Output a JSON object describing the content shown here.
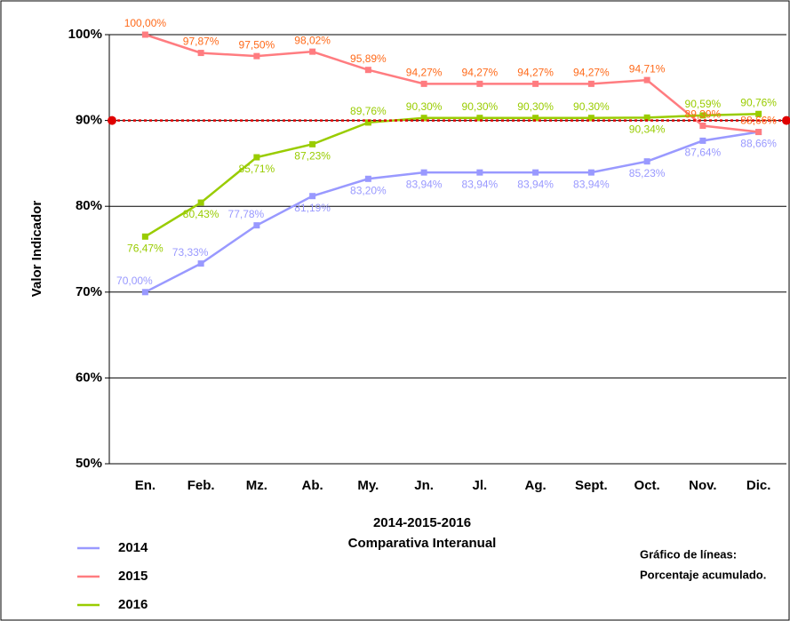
{
  "chart_data": {
    "type": "line",
    "y_label": "Valor Indicador",
    "x_label": [
      "2014-2015-2016",
      "Comparativa Interanual"
    ],
    "note": [
      "Gráfico de líneas:",
      "Porcentaje acumulado."
    ],
    "categories": [
      "En.",
      "Feb.",
      "Mz.",
      "Ab.",
      "My.",
      "Jn.",
      "Jl.",
      "Ag.",
      "Sept.",
      "Oct.",
      "Nov.",
      "Dic."
    ],
    "ylim": [
      50,
      100
    ],
    "yticks": [
      {
        "value": 50,
        "label": "50%"
      },
      {
        "value": 60,
        "label": "60%"
      },
      {
        "value": 70,
        "label": "70%"
      },
      {
        "value": 80,
        "label": "80%"
      },
      {
        "value": 90,
        "label": "90%"
      },
      {
        "value": 100,
        "label": "100%"
      }
    ],
    "grid": true,
    "reference_line": 90,
    "reference_color": "#e00000",
    "series": [
      {
        "name": "2014",
        "color": "#9999ff",
        "values": [
          70.0,
          73.33,
          77.78,
          81.19,
          83.2,
          83.94,
          83.94,
          83.94,
          83.94,
          85.23,
          87.64,
          88.66
        ],
        "value_labels": [
          "70,00%",
          "73,33%",
          "77,78%",
          "81,19%",
          "83,20%",
          "83,94%",
          "83,94%",
          "83,94%",
          "83,94%",
          "85,23%",
          "87,64%",
          "88,66%"
        ]
      },
      {
        "name": "2015",
        "color": "#ff7c80",
        "label_color": "#ff6a1a",
        "values": [
          100.0,
          97.87,
          97.5,
          98.02,
          95.89,
          94.27,
          94.27,
          94.27,
          94.27,
          94.71,
          89.39,
          88.66
        ],
        "value_labels": [
          "100,00%",
          "97,87%",
          "97,50%",
          "98,02%",
          "95,89%",
          "94,27%",
          "94,27%",
          "94,27%",
          "94,27%",
          "94,71%",
          "89,39%",
          "88,66%"
        ]
      },
      {
        "name": "2016",
        "color": "#99cc00",
        "values": [
          76.47,
          80.43,
          85.71,
          87.23,
          89.76,
          90.3,
          90.3,
          90.3,
          90.3,
          90.34,
          90.59,
          90.76
        ],
        "value_labels": [
          "76,47%",
          "80,43%",
          "85,71%",
          "87,23%",
          "89,76%",
          "90,30%",
          "90,30%",
          "90,30%",
          "90,30%",
          "90,34%",
          "90,59%",
          "90,76%"
        ]
      }
    ]
  }
}
